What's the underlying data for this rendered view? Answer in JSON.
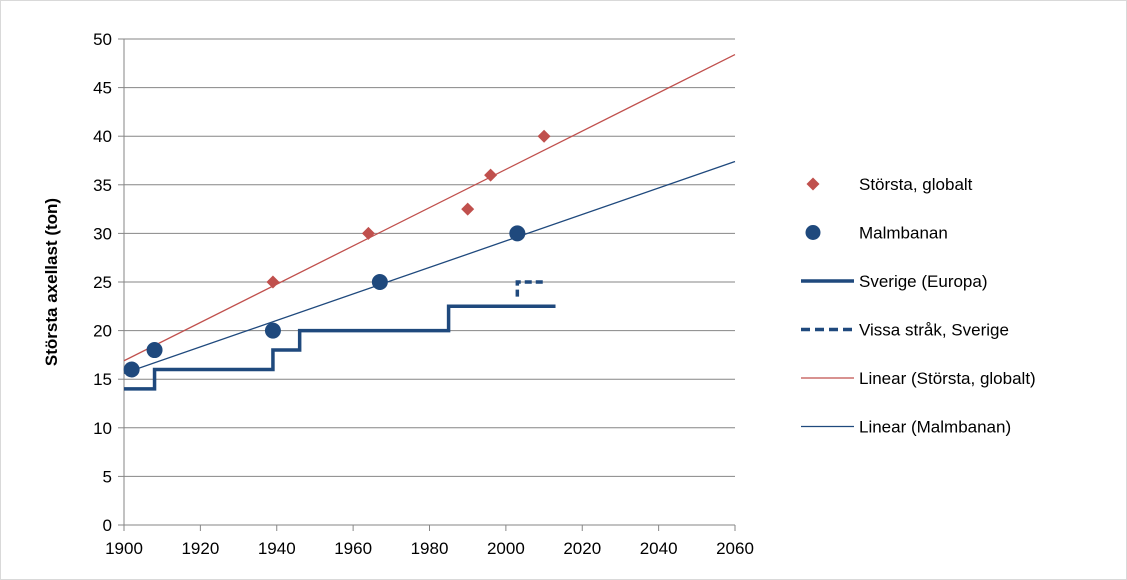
{
  "chart_data": {
    "type": "scatter",
    "title": "",
    "xlabel": "",
    "ylabel": "Största axellast (ton)",
    "xlim": [
      1900,
      2060
    ],
    "ylim": [
      0,
      50
    ],
    "x_ticks": [
      "1900",
      "1920",
      "1940",
      "1960",
      "1980",
      "2000",
      "2020",
      "2040",
      "2060"
    ],
    "y_ticks": [
      "0",
      "5",
      "10",
      "15",
      "20",
      "25",
      "30",
      "35",
      "40",
      "45",
      "50"
    ],
    "grid": "horizontal",
    "legend_position": "right",
    "series": [
      {
        "name": "Största, globalt",
        "kind": "scatter",
        "marker": "diamond",
        "color": "#c0504d",
        "points": [
          [
            1908,
            18
          ],
          [
            1939,
            25
          ],
          [
            1964,
            30
          ],
          [
            1990,
            32.5
          ],
          [
            1996,
            36
          ],
          [
            2010,
            40
          ]
        ]
      },
      {
        "name": "Malmbanan",
        "kind": "scatter",
        "marker": "circle",
        "color": "#1f497d",
        "points": [
          [
            1902,
            16
          ],
          [
            1908,
            18
          ],
          [
            1939,
            20
          ],
          [
            1967,
            25
          ],
          [
            2003,
            30
          ]
        ]
      },
      {
        "name": "Sverige (Europa)",
        "kind": "step",
        "style": "solid",
        "color": "#1f497d",
        "points": [
          [
            1900,
            14
          ],
          [
            1908,
            14
          ],
          [
            1908,
            16
          ],
          [
            1939,
            16
          ],
          [
            1939,
            18
          ],
          [
            1946,
            18
          ],
          [
            1946,
            20
          ],
          [
            1985,
            20
          ],
          [
            1985,
            22.5
          ],
          [
            2013,
            22.5
          ]
        ]
      },
      {
        "name": "Vissa stråk, Sverige",
        "kind": "step",
        "style": "dashed",
        "color": "#1f497d",
        "points": [
          [
            2003,
            23.5
          ],
          [
            2003,
            25
          ],
          [
            2010,
            25
          ]
        ]
      },
      {
        "name": "Linear (Största, globalt)",
        "kind": "trendline",
        "color": "#c0504d",
        "points": [
          [
            1900,
            16.9
          ],
          [
            2060,
            48.4
          ]
        ]
      },
      {
        "name": "Linear (Malmbanan)",
        "kind": "trendline",
        "color": "#1f497d",
        "points": [
          [
            1900,
            15.6
          ],
          [
            2060,
            37.4
          ]
        ]
      }
    ]
  }
}
